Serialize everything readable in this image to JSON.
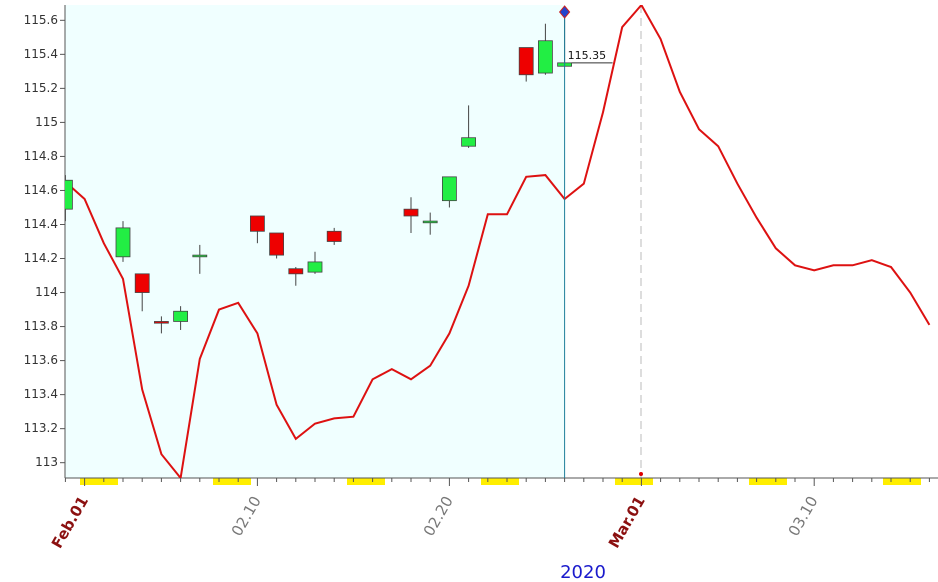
{
  "chart_data": {
    "type": "candlestick",
    "x_label": "2020",
    "categories": [
      null,
      "Feb.01",
      null,
      null,
      null,
      null,
      null,
      null,
      null,
      null,
      "02.10",
      null,
      null,
      null,
      null,
      null,
      null,
      null,
      null,
      null,
      "02.20",
      null,
      null,
      null,
      null,
      null,
      null,
      null,
      null,
      null,
      "Mar.01",
      null,
      null,
      null,
      null,
      null,
      null,
      null,
      null,
      "03.10",
      null,
      null,
      null,
      null,
      null,
      null
    ],
    "open": [
      114.49,
      null,
      null,
      114.21,
      114.11,
      113.83,
      113.83,
      114.21,
      null,
      null,
      114.45,
      114.35,
      114.14,
      114.12,
      114.36,
      null,
      null,
      null,
      114.49,
      114.41,
      114.54,
      114.86,
      null,
      null,
      115.44,
      115.29,
      115.33,
      null,
      null,
      null,
      null,
      null,
      null,
      null,
      null,
      null,
      null,
      null,
      null,
      null,
      null,
      null,
      null,
      null,
      null,
      null
    ],
    "high": [
      114.69,
      null,
      null,
      114.42,
      114.11,
      113.86,
      113.92,
      114.28,
      null,
      null,
      114.45,
      114.35,
      114.15,
      114.24,
      114.38,
      null,
      null,
      null,
      114.56,
      114.47,
      114.68,
      115.1,
      null,
      null,
      115.44,
      115.58,
      115.65,
      null,
      null,
      null,
      null,
      null,
      null,
      null,
      null,
      null,
      null,
      null,
      null,
      null,
      null,
      null,
      null,
      null,
      null,
      null
    ],
    "low": [
      114.42,
      null,
      null,
      114.18,
      113.89,
      113.76,
      113.78,
      114.11,
      null,
      null,
      114.29,
      114.2,
      114.04,
      114.11,
      114.28,
      null,
      null,
      null,
      114.35,
      114.34,
      114.5,
      114.85,
      null,
      null,
      115.24,
      115.28,
      115.33,
      null,
      null,
      null,
      null,
      null,
      null,
      null,
      null,
      null,
      null,
      null,
      null,
      null,
      null,
      null,
      null,
      null,
      null,
      null
    ],
    "close": [
      114.66,
      null,
      null,
      114.38,
      114.0,
      113.82,
      113.89,
      114.22,
      null,
      null,
      114.36,
      114.22,
      114.11,
      114.18,
      114.3,
      null,
      null,
      null,
      114.45,
      114.42,
      114.68,
      114.91,
      null,
      null,
      115.28,
      115.48,
      115.35,
      null,
      null,
      null,
      null,
      null,
      null,
      null,
      null,
      null,
      null,
      null,
      null,
      null,
      null,
      null,
      null,
      null,
      null,
      null
    ],
    "up_color": "#22ee44",
    "down_color": "#ee0000",
    "line": {
      "color": "#dd1111",
      "values": [
        114.65,
        114.55,
        114.29,
        114.08,
        113.43,
        113.05,
        112.91,
        113.61,
        113.9,
        113.94,
        113.76,
        113.34,
        113.14,
        113.23,
        113.26,
        113.27,
        113.49,
        113.55,
        113.49,
        113.57,
        113.76,
        114.04,
        114.46,
        114.46,
        114.68,
        114.69,
        114.55,
        114.64,
        115.06,
        115.56,
        115.69,
        115.49,
        115.18,
        114.96,
        114.86,
        114.64,
        114.44,
        114.26,
        114.16,
        114.13,
        114.16,
        114.16,
        114.19,
        114.15,
        114.0,
        113.81
      ]
    },
    "ylim": [
      112.91,
      115.69
    ],
    "yticks": [
      113,
      113.2,
      113.4,
      113.6,
      113.8,
      114,
      114.2,
      114.4,
      114.6,
      114.8,
      115,
      115.2,
      115.4,
      115.6
    ],
    "shade_color": "#f0ffff"
  }
}
